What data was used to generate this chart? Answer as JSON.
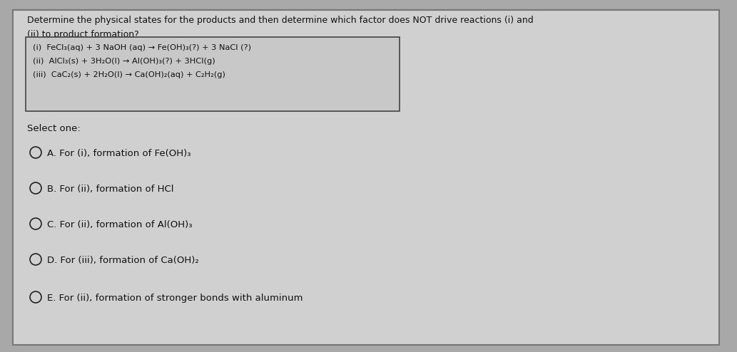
{
  "bg_color": "#a8a8a8",
  "card_color": "#d0d0d0",
  "title_line1": "Determine the physical states for the products and then determine which factor does NOT drive reactions (i) and",
  "title_line2": "(ii) to product formation?",
  "reactions": [
    "(i)  FeCl₃(aq) + 3 NaOH (aq) → Fe(OH)₃(?) + 3 NaCl (?)",
    "(ii)  AlCl₃(s) + 3H₂O(l) → Al(OH)₃(?) + 3HCl(g)",
    "(iii)  CaC₂(s) + 2H₂O(l) → Ca(OH)₂(aq) + C₂H₂(g)"
  ],
  "select_one": "Select one:",
  "options": [
    "A. For (i), formation of Fe(OH)₃",
    "B. For (ii), formation of HCl",
    "C. For (ii), formation of Al(OH)₃",
    "D. For (iii), formation of Ca(OH)₂",
    "E. For (ii), formation of stronger bonds with aluminum"
  ],
  "title_fontsize": 9.0,
  "reaction_fontsize": 8.2,
  "option_fontsize": 9.5,
  "select_fontsize": 9.5,
  "text_color": "#111111",
  "box_edge_color": "#444444",
  "box_face_color": "#c8c8c8",
  "card_edge_color": "#777777"
}
